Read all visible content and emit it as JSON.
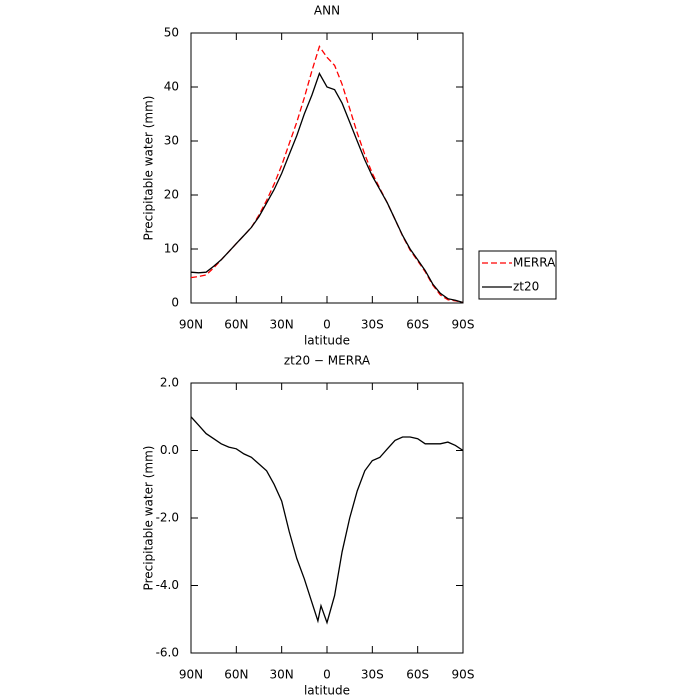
{
  "chart_data": [
    {
      "type": "line",
      "title": "ANN",
      "xlabel": "latitude",
      "ylabel": "Precipitable water (mm)",
      "x": [
        90,
        85,
        80,
        75,
        70,
        65,
        60,
        55,
        50,
        45,
        40,
        35,
        30,
        25,
        20,
        15,
        10,
        5,
        0,
        -5,
        -10,
        -15,
        -20,
        -25,
        -30,
        -35,
        -40,
        -45,
        -50,
        -55,
        -60,
        -65,
        -70,
        -75,
        -80,
        -85,
        -90
      ],
      "series": [
        {
          "name": "MERRA",
          "color": "#ff0000",
          "linestyle": "dashed",
          "values": [
            4.7,
            4.9,
            5.2,
            6.5,
            8.0,
            9.5,
            11,
            12.5,
            14,
            16.3,
            19,
            22,
            25.5,
            29.5,
            33.5,
            38,
            43,
            47.5,
            45.5,
            44,
            40.5,
            36,
            31.5,
            27.5,
            24,
            21.2,
            18.5,
            15.5,
            12.4,
            9.8,
            7.8,
            5.8,
            3.3,
            1.5,
            0.6,
            0.4,
            0.1
          ]
        },
        {
          "name": "zt20",
          "color": "#000000",
          "linestyle": "solid",
          "values": [
            5.7,
            5.6,
            5.7,
            6.8,
            8.0,
            9.5,
            11,
            12.5,
            14,
            16,
            18.5,
            21,
            24,
            27.5,
            31,
            35,
            38.5,
            42.5,
            40,
            39.5,
            37,
            33.5,
            30,
            26.5,
            23.5,
            21,
            18.5,
            15.5,
            12.5,
            10,
            8,
            6,
            3.5,
            1.8,
            0.8,
            0.5,
            0.1
          ]
        }
      ],
      "xlim": [
        90,
        -90
      ],
      "xticks": [
        {
          "value": 90,
          "label": "90N"
        },
        {
          "value": 60,
          "label": "60N"
        },
        {
          "value": 30,
          "label": "30N"
        },
        0,
        {
          "value": -30,
          "label": "30S"
        },
        {
          "value": -60,
          "label": "60S"
        },
        {
          "value": -90,
          "label": "90S"
        }
      ],
      "ylim": [
        0,
        50
      ],
      "yticks": [
        0,
        10,
        20,
        30,
        40,
        50
      ],
      "legend": "right"
    },
    {
      "type": "line",
      "title": "zt20 − MERRA",
      "xlabel": "latitude",
      "ylabel": "Precipitable water (mm)",
      "x": [
        90,
        85,
        80,
        75,
        70,
        65,
        60,
        55,
        50,
        45,
        40,
        35,
        30,
        25,
        20,
        15,
        10,
        6,
        4,
        0,
        -5,
        -10,
        -15,
        -20,
        -25,
        -30,
        -35,
        -40,
        -45,
        -50,
        -55,
        -60,
        -65,
        -70,
        -75,
        -80,
        -85,
        -90
      ],
      "values": [
        1.0,
        0.75,
        0.5,
        0.35,
        0.2,
        0.1,
        0.05,
        -0.1,
        -0.2,
        -0.4,
        -0.6,
        -1.0,
        -1.5,
        -2.4,
        -3.2,
        -3.8,
        -4.5,
        -5.05,
        -4.6,
        -5.1,
        -4.3,
        -3.0,
        -2.0,
        -1.2,
        -0.6,
        -0.3,
        -0.2,
        0.05,
        0.3,
        0.4,
        0.4,
        0.35,
        0.2,
        0.2,
        0.2,
        0.25,
        0.15,
        0.0
      ],
      "color": "#000000",
      "xlim": [
        90,
        -90
      ],
      "xticks": [
        {
          "value": 90,
          "label": "90N"
        },
        {
          "value": 60,
          "label": "60N"
        },
        {
          "value": 30,
          "label": "30N"
        },
        0,
        {
          "value": -30,
          "label": "30S"
        },
        {
          "value": -60,
          "label": "60S"
        },
        {
          "value": -90,
          "label": "90S"
        }
      ],
      "ylim": [
        -6,
        2
      ],
      "yticks": [
        {
          "value": -6,
          "label": "-6.0"
        },
        {
          "value": -4,
          "label": "-4.0"
        },
        {
          "value": -2,
          "label": "-2.0"
        },
        {
          "value": 0,
          "label": "0.0"
        },
        {
          "value": 2,
          "label": "2.0"
        }
      ]
    }
  ]
}
